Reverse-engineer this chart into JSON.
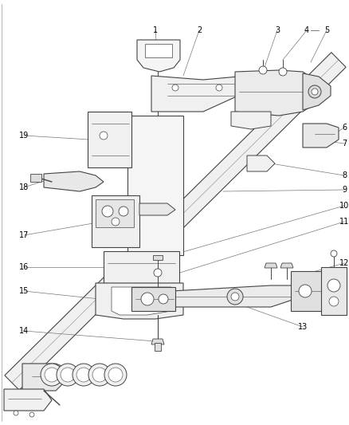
{
  "bg_color": "#ffffff",
  "line_color": "#444444",
  "text_color": "#000000",
  "fig_width": 4.38,
  "fig_height": 5.33,
  "dpi": 100,
  "label_fs": 7.0
}
